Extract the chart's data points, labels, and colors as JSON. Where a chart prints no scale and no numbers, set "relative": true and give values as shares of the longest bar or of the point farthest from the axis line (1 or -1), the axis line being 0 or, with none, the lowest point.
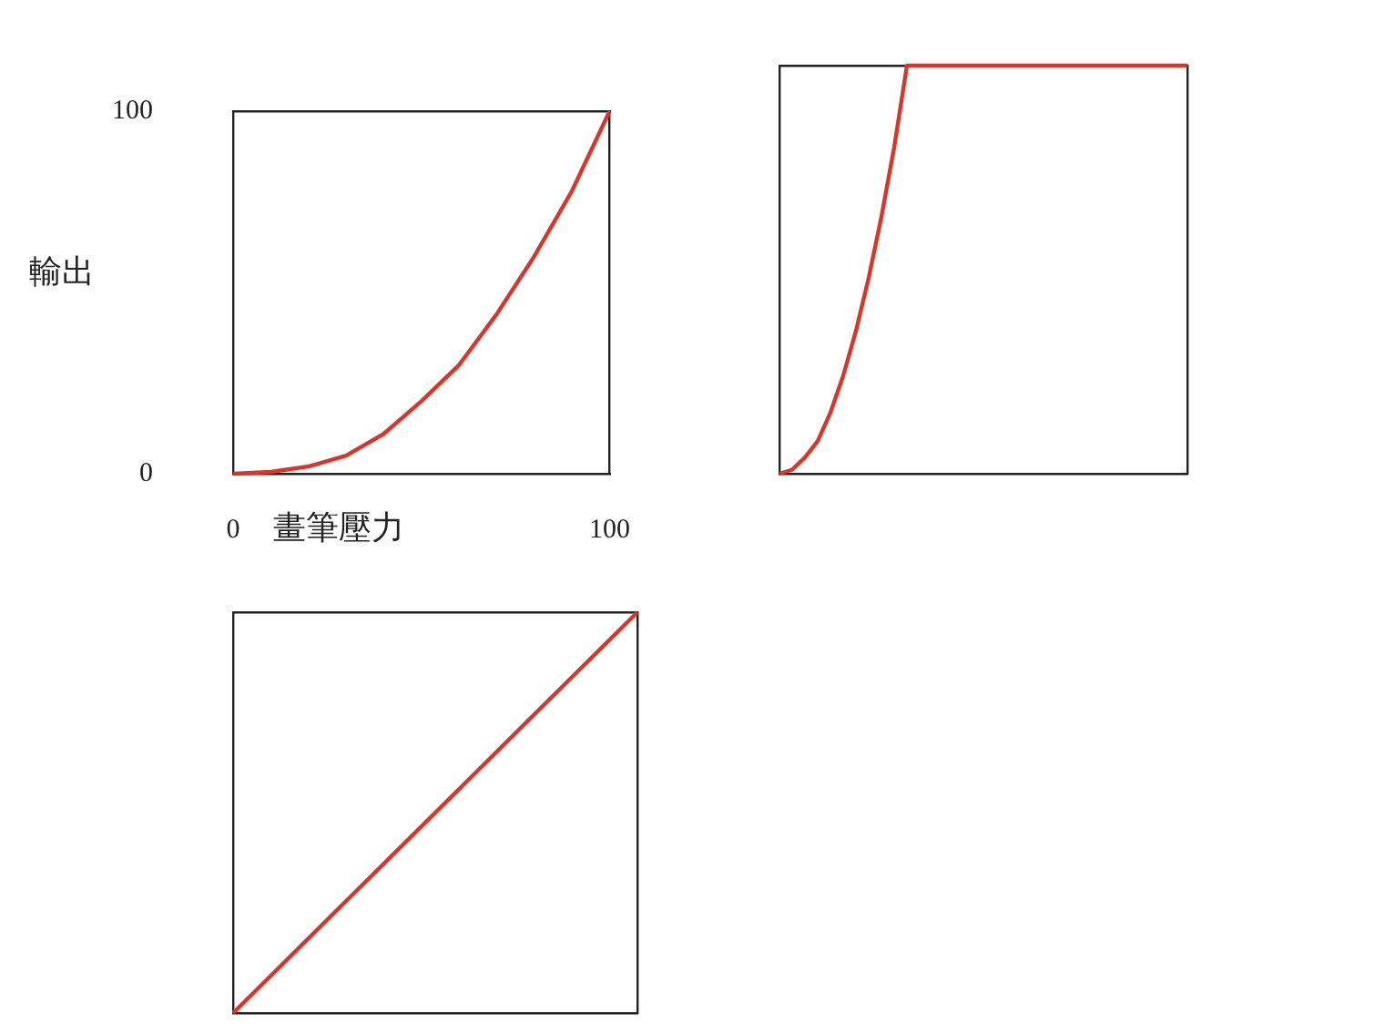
{
  "chart_data": [
    {
      "type": "line",
      "ylabel": "輸出",
      "xlabel": "畫筆壓力",
      "xlim": [
        0,
        100
      ],
      "ylim": [
        0,
        100
      ],
      "xticks": [
        0,
        100
      ],
      "yticks": [
        0,
        100
      ],
      "grid": false,
      "legend": false,
      "marker": "none",
      "series": [
        {
          "color": "#d9362b",
          "x": [
            0,
            10,
            20,
            30,
            40,
            50,
            60,
            70,
            80,
            90,
            100
          ],
          "values": [
            0,
            0.5,
            2,
            5,
            11,
            20,
            30,
            44,
            60,
            78,
            100
          ]
        }
      ]
    },
    {
      "type": "line",
      "relative": true,
      "categories": [
        null,
        null,
        null,
        null,
        null,
        null,
        null,
        null,
        null,
        null,
        null,
        null,
        null,
        null,
        null,
        null,
        null,
        null,
        null,
        null,
        null,
        null,
        null,
        null,
        null,
        null,
        null,
        null,
        null,
        null,
        null,
        null,
        null
      ],
      "grid": false,
      "legend": false,
      "marker": "none",
      "series": [
        {
          "color": "#d9362b",
          "values": [
            0,
            0.01,
            0.04,
            0.08,
            0.15,
            0.24,
            0.35,
            0.48,
            0.63,
            0.8,
            1,
            1,
            1,
            1,
            1,
            1,
            1,
            1,
            1,
            1,
            1,
            1,
            1,
            1,
            1,
            1,
            1,
            1,
            1,
            1,
            1,
            1,
            1
          ]
        }
      ]
    },
    {
      "type": "line",
      "relative": true,
      "categories": [
        null,
        null
      ],
      "grid": false,
      "legend": false,
      "marker": "none",
      "series": [
        {
          "color": "#d9362b",
          "values": [
            0,
            1
          ]
        }
      ]
    }
  ]
}
